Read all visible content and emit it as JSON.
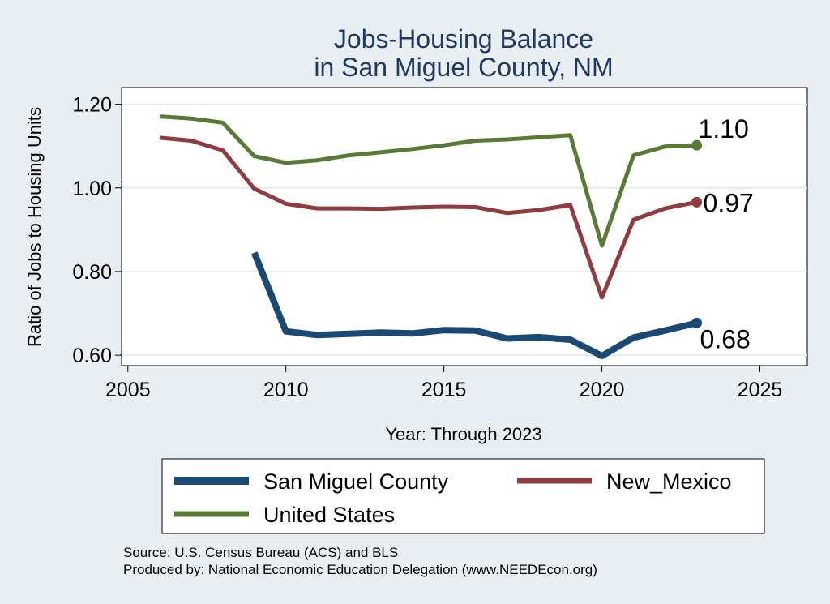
{
  "chart_data": {
    "type": "line",
    "title": [
      "Jobs-Housing Balance",
      "in San Miguel County, NM"
    ],
    "xlabel": "Year: Through 2023",
    "ylabel": "Ratio of Jobs to Housing Units",
    "xlim": [
      2004.8,
      2026.5
    ],
    "ylim": [
      0.575,
      1.24
    ],
    "xticks": [
      2005,
      2010,
      2015,
      2020,
      2025
    ],
    "yticks": [
      0.6,
      0.8,
      1.0,
      1.2
    ],
    "ytick_labels": [
      "0.60",
      "0.80",
      "1.00",
      "1.20"
    ],
    "grid": true,
    "legend_position": "bottom",
    "series": [
      {
        "name": "San Miguel County",
        "color": "#1a4a73",
        "width": 8,
        "end_label": "0.68",
        "x": [
          2009,
          2010,
          2011,
          2012,
          2013,
          2014,
          2015,
          2016,
          2017,
          2018,
          2019,
          2020,
          2021,
          2022,
          2023
        ],
        "values": [
          0.845,
          0.657,
          0.648,
          0.651,
          0.654,
          0.652,
          0.66,
          0.659,
          0.64,
          0.643,
          0.637,
          0.598,
          0.642,
          0.659,
          0.677
        ]
      },
      {
        "name": "New_Mexico",
        "color": "#8f3b3f",
        "width": 5,
        "end_label": "0.97",
        "x": [
          2006,
          2007,
          2008,
          2009,
          2010,
          2011,
          2012,
          2013,
          2014,
          2015,
          2016,
          2017,
          2018,
          2019,
          2020,
          2021,
          2022,
          2023
        ],
        "values": [
          1.12,
          1.113,
          1.09,
          0.998,
          0.962,
          0.951,
          0.951,
          0.95,
          0.953,
          0.955,
          0.954,
          0.94,
          0.947,
          0.959,
          0.738,
          0.924,
          0.951,
          0.966
        ]
      },
      {
        "name": "United States",
        "color": "#587a34",
        "width": 5,
        "end_label": "1.10",
        "x": [
          2006,
          2007,
          2008,
          2009,
          2010,
          2011,
          2012,
          2013,
          2014,
          2015,
          2016,
          2017,
          2018,
          2019,
          2020,
          2021,
          2022,
          2023
        ],
        "values": [
          1.171,
          1.166,
          1.156,
          1.076,
          1.06,
          1.066,
          1.078,
          1.085,
          1.093,
          1.102,
          1.113,
          1.116,
          1.121,
          1.126,
          0.862,
          1.078,
          1.099,
          1.102
        ]
      }
    ],
    "source": [
      "Source: U.S. Census Bureau (ACS) and BLS",
      "Produced by: National Economic Education Delegation (www.NEEDEcon.org)"
    ]
  }
}
